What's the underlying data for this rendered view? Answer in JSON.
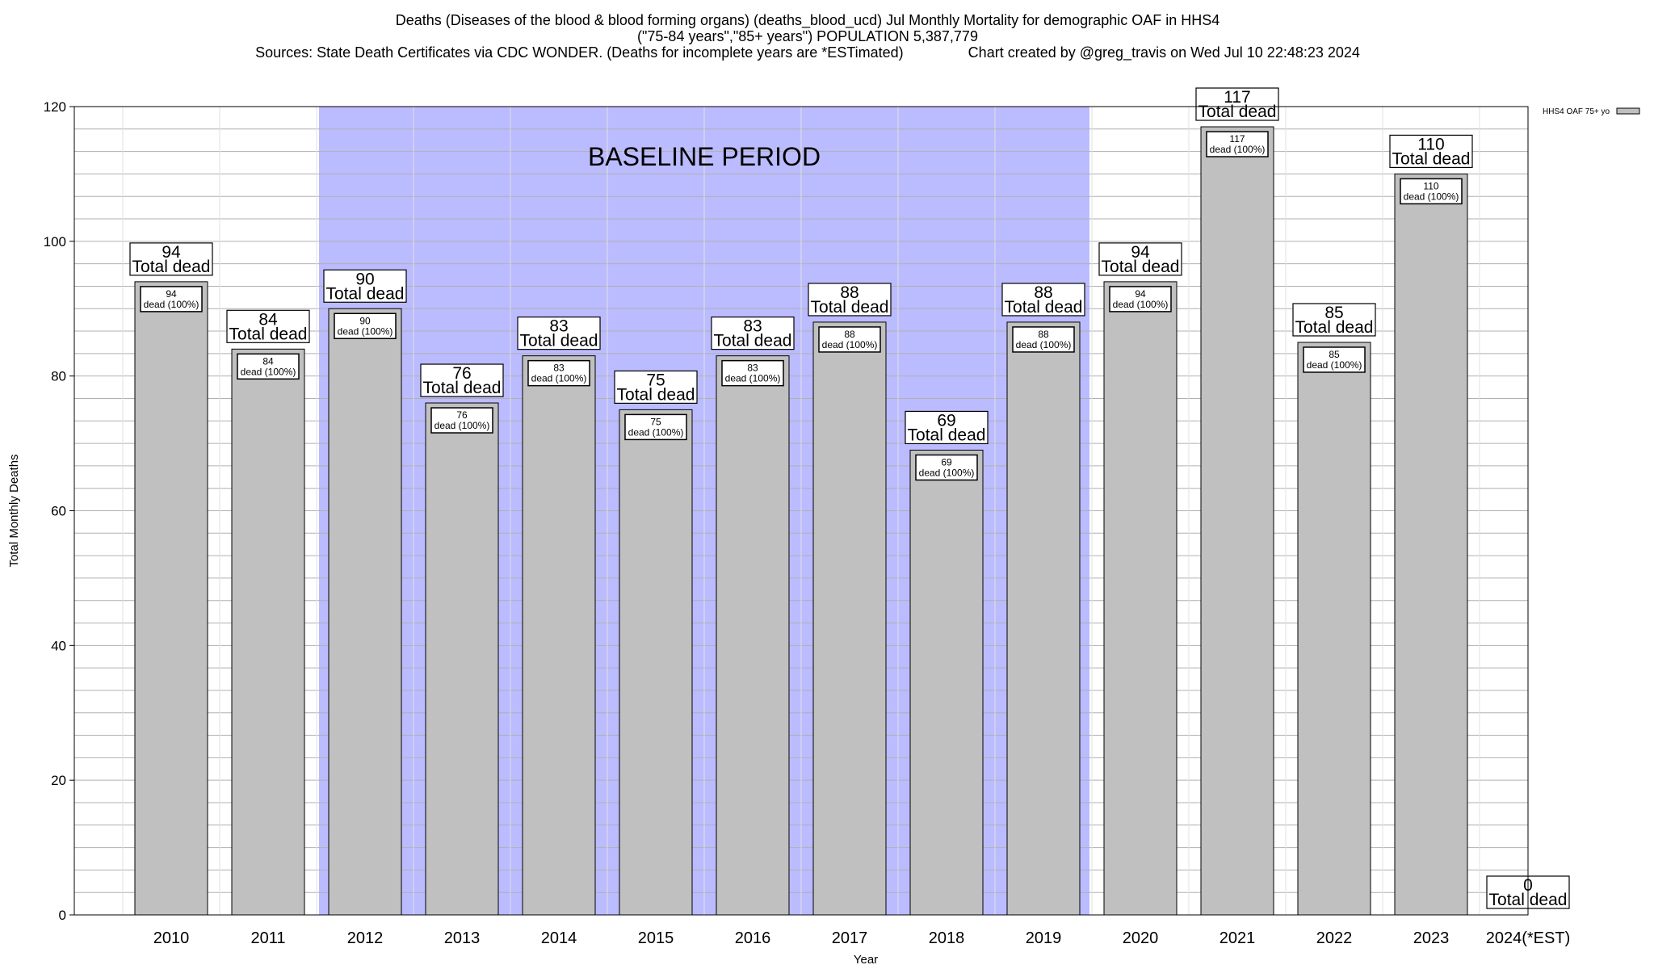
{
  "header": {
    "title_line1": "Deaths (Diseases of the blood & blood forming organs) (deaths_blood_ucd) Jul Monthly Mortality for demographic OAF in HHS4",
    "title_line2": "(\"75-84 years\",\"85+ years\") POPULATION 5,387,779",
    "title_line3": "Sources: State Death Certificates via CDC WONDER. (Deaths for incomplete years are *ESTimated)                Chart created by @greg_travis on Wed Jul 10 22:48:23 2024"
  },
  "chart_data": {
    "type": "bar",
    "categories": [
      "2010",
      "2011",
      "2012",
      "2013",
      "2014",
      "2015",
      "2016",
      "2017",
      "2018",
      "2019",
      "2020",
      "2021",
      "2022",
      "2023",
      "2024(*EST)"
    ],
    "series": [
      {
        "name": "HHS4 OAF 75+ yo",
        "values": [
          94,
          84,
          90,
          76,
          83,
          75,
          83,
          88,
          69,
          88,
          94,
          117,
          85,
          110,
          0
        ]
      }
    ],
    "xlabel": "Year",
    "ylabel": "Total Monthly Deaths",
    "ylim": [
      0,
      120
    ],
    "yticks": [
      0,
      20,
      40,
      60,
      80,
      100,
      120
    ],
    "total_label_text": "Total dead",
    "inner_label_text": "dead (100%)",
    "baseline": {
      "label": "BASELINE PERIOD",
      "start": "2012",
      "end": "2019"
    },
    "legend": {
      "position": "top-right",
      "label": "HHS4 OAF 75+ yo"
    },
    "grid": true,
    "colors": {
      "bar": "#c0c0c0",
      "baseline": "#bbbbff",
      "grid": "#b0b0b0"
    }
  }
}
